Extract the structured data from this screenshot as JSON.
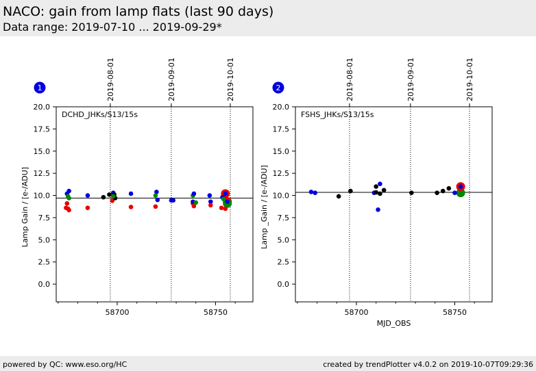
{
  "header": {
    "title": "NACO: gain from lamp flats (last 90 days)",
    "subtitle": "Data range: 2019-07-10 ... 2019-09-29*"
  },
  "footer": {
    "left": "powered by QC: www.eso.org/HC",
    "right": "created by trendPlotter v4.0.2 on 2019-10-07T09:29:36"
  },
  "colors": {
    "red": "#e80000",
    "green": "#008800",
    "blue": "#0000dd",
    "black": "#000000",
    "badge": "#0000dd"
  },
  "chart_data": [
    {
      "type": "scatter",
      "panel_number": "1",
      "label": "DCHD_JHKs/S13/15s",
      "xlabel": "",
      "ylabel": "Lamp Gain / [e-/ADU]",
      "xlim": [
        58669,
        58769
      ],
      "ylim": [
        -2,
        20
      ],
      "xticks": [
        58700,
        58750
      ],
      "yticks": [
        0.0,
        2.5,
        5.0,
        7.5,
        10.0,
        12.5,
        15.0,
        17.5,
        20.0
      ],
      "date_lines": [
        {
          "x": 58696.5,
          "label": "2019-08-01"
        },
        {
          "x": 58727.5,
          "label": "2019-09-01"
        },
        {
          "x": 58757.5,
          "label": "2019-10-01"
        }
      ],
      "reference_line": 9.7,
      "points": [
        {
          "x": 58674,
          "y": 8.6,
          "c": "red"
        },
        {
          "x": 58674.5,
          "y": 9.1,
          "c": "red"
        },
        {
          "x": 58675,
          "y": 8.5,
          "c": "red"
        },
        {
          "x": 58675.5,
          "y": 8.35,
          "c": "red"
        },
        {
          "x": 58674.5,
          "y": 10.2,
          "c": "blue"
        },
        {
          "x": 58675.5,
          "y": 10.5,
          "c": "blue"
        },
        {
          "x": 58675,
          "y": 9.9,
          "c": "green"
        },
        {
          "x": 58675.5,
          "y": 9.7,
          "c": "green"
        },
        {
          "x": 58685,
          "y": 8.6,
          "c": "red"
        },
        {
          "x": 58685,
          "y": 10.0,
          "c": "blue"
        },
        {
          "x": 58693,
          "y": 9.8,
          "c": "black"
        },
        {
          "x": 58696,
          "y": 10.1,
          "c": "black"
        },
        {
          "x": 58697.5,
          "y": 9.4,
          "c": "red"
        },
        {
          "x": 58698,
          "y": 10.3,
          "c": "blue"
        },
        {
          "x": 58698.5,
          "y": 10.1,
          "c": "black"
        },
        {
          "x": 58699,
          "y": 9.7,
          "c": "black"
        },
        {
          "x": 58698,
          "y": 9.9,
          "c": "green"
        },
        {
          "x": 58707,
          "y": 8.7,
          "c": "red"
        },
        {
          "x": 58707,
          "y": 10.2,
          "c": "blue"
        },
        {
          "x": 58719.5,
          "y": 8.75,
          "c": "red"
        },
        {
          "x": 58720,
          "y": 10.4,
          "c": "blue"
        },
        {
          "x": 58719.5,
          "y": 10.0,
          "c": "green"
        },
        {
          "x": 58720.5,
          "y": 9.5,
          "c": "blue"
        },
        {
          "x": 58727.5,
          "y": 9.45,
          "c": "blue"
        },
        {
          "x": 58728.5,
          "y": 9.45,
          "c": "blue"
        },
        {
          "x": 58738.5,
          "y": 9.1,
          "c": "red"
        },
        {
          "x": 58739,
          "y": 8.8,
          "c": "red"
        },
        {
          "x": 58738.5,
          "y": 10.0,
          "c": "green"
        },
        {
          "x": 58739,
          "y": 10.2,
          "c": "blue"
        },
        {
          "x": 58738.5,
          "y": 9.3,
          "c": "blue"
        },
        {
          "x": 58740,
          "y": 9.2,
          "c": "green"
        },
        {
          "x": 58747,
          "y": 10.0,
          "c": "blue"
        },
        {
          "x": 58747.5,
          "y": 9.3,
          "c": "blue"
        },
        {
          "x": 58747.5,
          "y": 8.9,
          "c": "red"
        },
        {
          "x": 58753,
          "y": 8.6,
          "c": "red"
        },
        {
          "x": 58753.5,
          "y": 9.8,
          "c": "blue"
        },
        {
          "x": 58754,
          "y": 9.6,
          "c": "green"
        },
        {
          "x": 58755,
          "y": 8.5,
          "c": "red"
        },
        {
          "x": 58756,
          "y": 9.0,
          "c": "green"
        },
        {
          "x": 58755,
          "y": 10.2,
          "c": "red",
          "big": true
        },
        {
          "x": 58755,
          "y": 10.2,
          "c": "blue"
        },
        {
          "x": 58756,
          "y": 9.3,
          "c": "red",
          "big": true
        },
        {
          "x": 58756,
          "y": 9.1,
          "c": "green",
          "big": true
        },
        {
          "x": 58756,
          "y": 9.3,
          "c": "blue"
        }
      ]
    },
    {
      "type": "scatter",
      "panel_number": "2",
      "label": "FSHS_JHKs/S13/15s",
      "xlabel": "MJD_OBS",
      "ylabel": "Lamp _Gain / [e-/ADU]",
      "xlim": [
        58669,
        58769
      ],
      "ylim": [
        -2,
        20
      ],
      "xticks": [
        58700,
        58750
      ],
      "yticks": [
        0.0,
        2.5,
        5.0,
        7.5,
        10.0,
        12.5,
        15.0,
        17.5,
        20.0
      ],
      "date_lines": [
        {
          "x": 58696.5,
          "label": "2019-08-01"
        },
        {
          "x": 58727.5,
          "label": "2019-09-01"
        },
        {
          "x": 58757.5,
          "label": "2019-10-01"
        }
      ],
      "reference_line": 10.35,
      "points": [
        {
          "x": 58677,
          "y": 10.4,
          "c": "blue"
        },
        {
          "x": 58679,
          "y": 10.3,
          "c": "blue"
        },
        {
          "x": 58691,
          "y": 9.9,
          "c": "black"
        },
        {
          "x": 58697,
          "y": 10.5,
          "c": "black"
        },
        {
          "x": 58709,
          "y": 10.3,
          "c": "blue"
        },
        {
          "x": 58710,
          "y": 10.35,
          "c": "black"
        },
        {
          "x": 58710,
          "y": 11.0,
          "c": "black"
        },
        {
          "x": 58711,
          "y": 8.4,
          "c": "blue"
        },
        {
          "x": 58712,
          "y": 11.3,
          "c": "blue"
        },
        {
          "x": 58712,
          "y": 10.2,
          "c": "black"
        },
        {
          "x": 58714,
          "y": 10.6,
          "c": "black"
        },
        {
          "x": 58728,
          "y": 10.3,
          "c": "black"
        },
        {
          "x": 58741,
          "y": 10.3,
          "c": "black"
        },
        {
          "x": 58744,
          "y": 10.5,
          "c": "black"
        },
        {
          "x": 58747,
          "y": 10.8,
          "c": "black"
        },
        {
          "x": 58750,
          "y": 10.3,
          "c": "blue"
        },
        {
          "x": 58753,
          "y": 10.3,
          "c": "green",
          "big": true
        },
        {
          "x": 58753,
          "y": 11.0,
          "c": "red",
          "big": true
        },
        {
          "x": 58753,
          "y": 11.0,
          "c": "blue"
        }
      ]
    }
  ]
}
